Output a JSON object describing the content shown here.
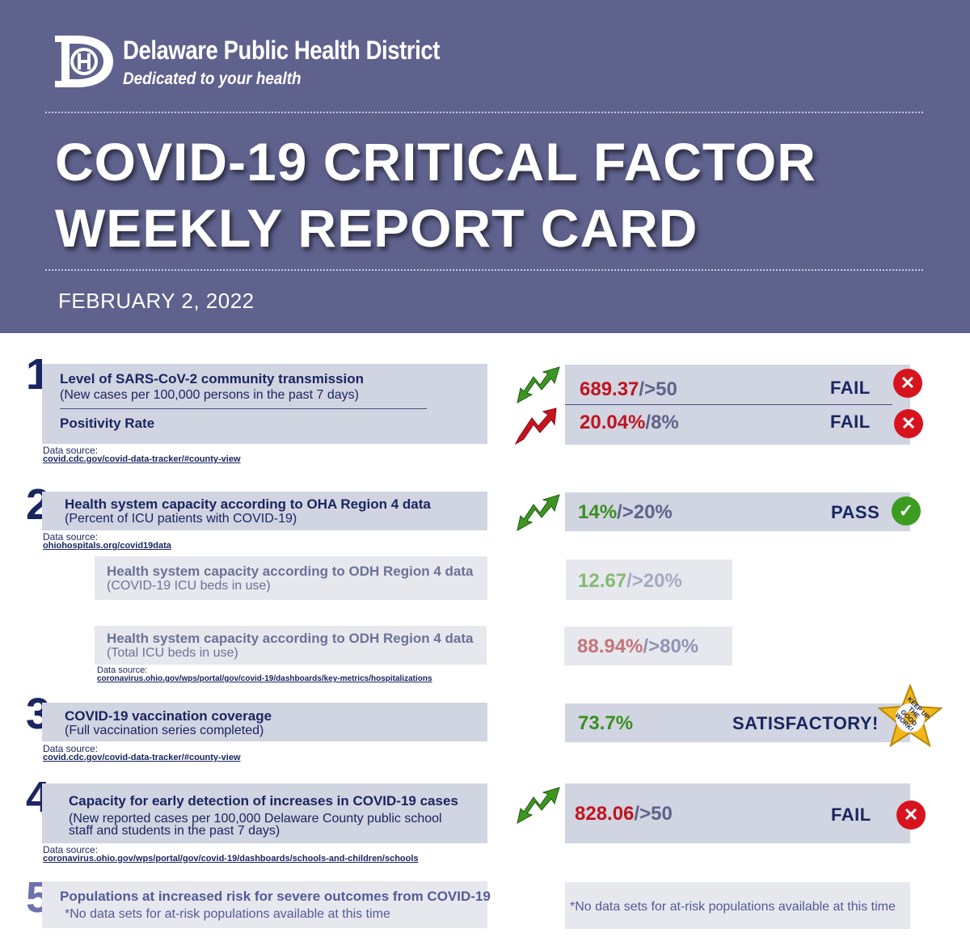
{
  "header": {
    "org_name": "Delaware Public Health District",
    "tagline": "Dedicated to your health",
    "title_line1": "COVID-19 CRITICAL FACTOR",
    "title_line2": "WEEKLY REPORT CARD",
    "date": "FEBRUARY 2, 2022",
    "logo_icon": "dh-logo"
  },
  "colors": {
    "header_bg": "#5f628d",
    "box_bg": "#d1d4e1",
    "fail": "#d7141e",
    "pass": "#3b9c20",
    "text": "#1a2660"
  },
  "source_label": "Data source:",
  "factor1": {
    "number": "1",
    "heading": "Level of SARS-CoV-2 community transmission",
    "subtext": "(New cases per 100,000 persons in the past 7 days)",
    "heading2": "Positivity Rate",
    "source": "covid.cdc.gov/covid-data-tracker/#county-view",
    "metric1": {
      "value": "689.37",
      "threshold": "/>50",
      "status": "FAIL",
      "trend": "trend-down-arrow-icon"
    },
    "metric2": {
      "value": "20.04%",
      "threshold": "/8%",
      "status": "FAIL",
      "trend": "trend-up-arrow-icon"
    }
  },
  "factor2": {
    "number": "2",
    "heading": "Health system capacity according to OHA Region 4 data",
    "subtext": "(Percent of ICU patients with COVID-19)",
    "source": "ohiohospitals.org/covid19data",
    "metric": {
      "value": "14%",
      "threshold": "/>20%",
      "status": "PASS",
      "trend": "trend-down-arrow-icon"
    },
    "sub1": {
      "heading": "Health system capacity according to ODH Region 4 data",
      "subtext": "(COVID-19 ICU beds in use)",
      "value": "12.67",
      "threshold": "/>20%"
    },
    "sub2": {
      "heading": "Health system capacity according to ODH Region 4 data",
      "subtext": "(Total ICU beds in use)",
      "value": "88.94%",
      "threshold": "/>80%",
      "source": "coronavirus.ohio.gov/wps/portal/gov/covid-19/dashboards/key-metrics/hospitalizations"
    }
  },
  "factor3": {
    "number": "3",
    "heading": "COVID-19 vaccination coverage",
    "subtext": "(Full vaccination series completed)",
    "source": "covid.cdc.gov/covid-data-tracker/#county-view",
    "metric": {
      "value": "73.7%",
      "status": "SATISFACTORY!"
    },
    "badge": "KEEP UP THE GOOD WORK!"
  },
  "factor4": {
    "number": "4",
    "heading": "Capacity for early detection of increases in COVID-19 cases",
    "subtext_line1": "(New reported cases per 100,000 Delaware County public school",
    "subtext_line2": "staff and students in the past 7 days)",
    "source": "coronavirus.ohio.gov/wps/portal/gov/covid-19/dashboards/schools-and-children/schools",
    "metric": {
      "value": "828.06",
      "threshold": "/>50",
      "status": "FAIL",
      "trend": "trend-down-arrow-icon"
    }
  },
  "factor5": {
    "number": "5",
    "heading": "Populations at increased risk for severe outcomes from COVID-19",
    "subtext": "*No data sets for at-risk populations available at this time",
    "right_text": "*No data sets for at-risk populations available at this time"
  }
}
